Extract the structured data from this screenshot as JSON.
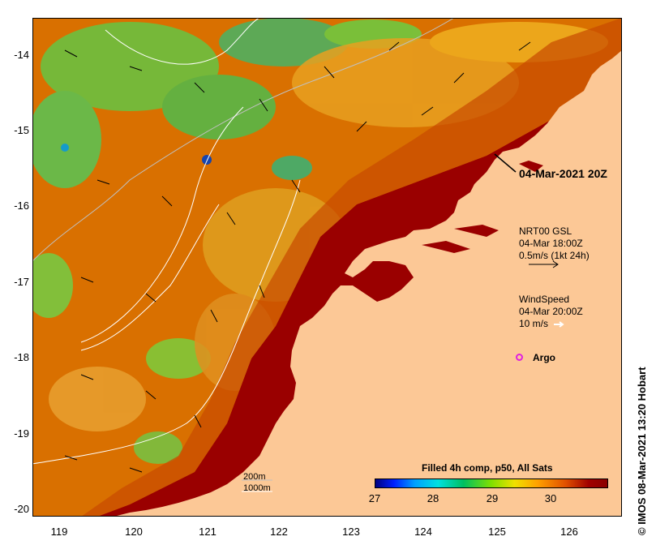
{
  "map": {
    "y_ticks": [
      "-14",
      "-15",
      "-16",
      "-17",
      "-18",
      "-19",
      "-20"
    ],
    "x_ticks": [
      "119",
      "120",
      "121",
      "122",
      "123",
      "124",
      "125",
      "126"
    ],
    "timestamp": "04-Mar-2021 20Z",
    "currents": {
      "line1": "NRT00 GSL",
      "line2": "04-Mar 18:00Z",
      "line3": "0.5m/s (1kt 24h)"
    },
    "wind": {
      "line1": "WindSpeed",
      "line2": "04-Mar 20:00Z",
      "line3": "10 m/s"
    },
    "argo_label": "Argo",
    "contour_legend": {
      "line1": "200m",
      "line2": "1000m"
    },
    "colorbar": {
      "title": "Filled 4h comp, p50, All Sats",
      "ticks": [
        "27",
        "28",
        "29",
        "30"
      ]
    },
    "credit": "© IMOS 08-Mar-2021 13:20 Hobart",
    "colors": {
      "land": "#fcc896",
      "hot_sst": "#990000",
      "warm_sst": "#d86a00",
      "mid_sst": "#e8a000",
      "cool_sst": "#40c040"
    }
  }
}
